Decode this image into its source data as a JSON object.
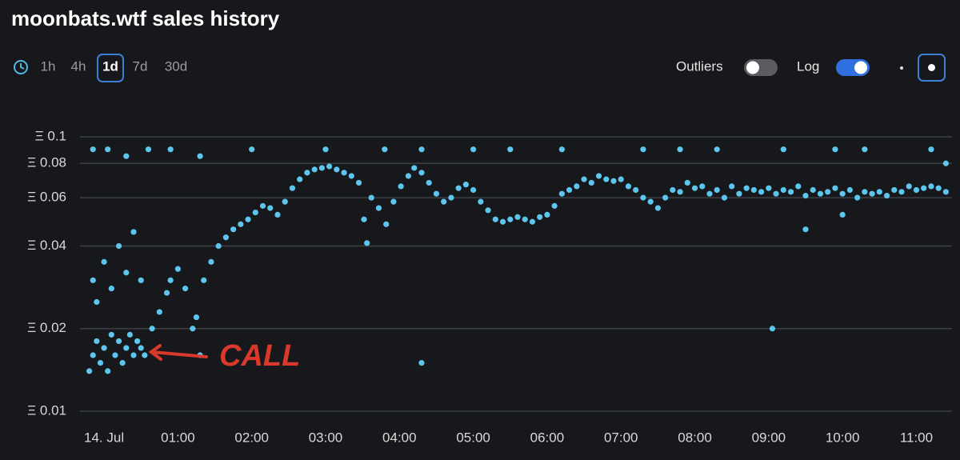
{
  "ui": {
    "title": "moonbats.wtf sales history",
    "ranges": [
      "1h",
      "4h",
      "1d",
      "7d",
      "30d"
    ],
    "selected_range": "1d",
    "outliers_label": "Outliers",
    "outliers_on": false,
    "log_label": "Log",
    "log_on": true
  },
  "chart_data": {
    "type": "scatter",
    "log_y": true,
    "grid": true,
    "color": "#5cc6ee",
    "annotation": "CALL",
    "annotation_color": "#d8392b",
    "xlim": [
      -0.25,
      11.45
    ],
    "ylim": [
      0.01,
      0.1
    ],
    "xticks": [
      {
        "value": 0,
        "label": "14. Jul"
      },
      {
        "value": 1,
        "label": "01:00"
      },
      {
        "value": 2,
        "label": "02:00"
      },
      {
        "value": 3,
        "label": "03:00"
      },
      {
        "value": 4,
        "label": "04:00"
      },
      {
        "value": 5,
        "label": "05:00"
      },
      {
        "value": 6,
        "label": "06:00"
      },
      {
        "value": 7,
        "label": "07:00"
      },
      {
        "value": 8,
        "label": "08:00"
      },
      {
        "value": 9,
        "label": "09:00"
      },
      {
        "value": 10,
        "label": "10:00"
      },
      {
        "value": 11,
        "label": "11:00"
      }
    ],
    "yticks": [
      {
        "value": 0.01,
        "label": "Ξ 0.01"
      },
      {
        "value": 0.02,
        "label": "Ξ 0.02"
      },
      {
        "value": 0.04,
        "label": "Ξ 0.04"
      },
      {
        "value": 0.06,
        "label": "Ξ 0.06"
      },
      {
        "value": 0.08,
        "label": "Ξ 0.08"
      },
      {
        "value": 0.1,
        "label": "Ξ 0.1"
      }
    ],
    "x": [
      -0.2,
      -0.15,
      -0.1,
      -0.05,
      0,
      0.05,
      0.1,
      0.15,
      0.2,
      0.25,
      0.3,
      0.35,
      0.4,
      0.45,
      0.5,
      0.55,
      -0.15,
      -0.1,
      0,
      0.1,
      0.2,
      0.3,
      0.4,
      0.5,
      -0.15,
      0.05,
      0.3,
      0.6,
      0.9,
      1.3,
      0.65,
      0.75,
      0.85,
      0.9,
      1.0,
      1.1,
      1.2,
      1.25,
      1.35,
      1.45,
      1.55,
      1.65,
      1.75,
      1.85,
      1.95,
      2.05,
      2.15,
      2.25,
      2.35,
      2.45,
      2.55,
      2.65,
      2.75,
      2.85,
      2.95,
      3.05,
      3.15,
      3.25,
      3.35,
      3.45,
      3.52,
      3.56,
      3.62,
      3.72,
      3.82,
      3.92,
      4.02,
      4.12,
      4.2,
      4.3,
      4.4,
      4.5,
      4.6,
      4.7,
      4.8,
      4.9,
      5.0,
      5.1,
      5.2,
      5.3,
      5.4,
      5.5,
      5.6,
      5.7,
      5.8,
      5.9,
      6.0,
      6.1,
      6.2,
      6.3,
      6.4,
      6.5,
      6.6,
      6.7,
      6.8,
      6.9,
      7.0,
      7.1,
      7.2,
      7.3,
      7.4,
      7.5,
      7.6,
      7.7,
      7.8,
      7.9,
      8.0,
      8.1,
      8.2,
      8.3,
      8.4,
      8.5,
      8.6,
      8.7,
      8.8,
      8.9,
      9.0,
      9.1,
      9.2,
      9.3,
      9.4,
      9.5,
      9.6,
      9.7,
      9.8,
      9.9,
      10.0,
      10.1,
      10.2,
      10.3,
      10.4,
      10.5,
      10.6,
      10.7,
      10.8,
      10.9,
      11.0,
      11.1,
      11.2,
      11.3,
      11.4,
      2.0,
      3.0,
      3.8,
      4.3,
      5.0,
      5.5,
      6.2,
      7.3,
      7.8,
      8.3,
      9.2,
      9.9,
      10.3,
      11.2,
      11.4,
      4.3,
      9.05,
      1.3,
      9.5,
      10.0
    ],
    "values": [
      0.014,
      0.016,
      0.018,
      0.015,
      0.017,
      0.014,
      0.019,
      0.016,
      0.018,
      0.015,
      0.017,
      0.019,
      0.016,
      0.018,
      0.017,
      0.016,
      0.03,
      0.025,
      0.035,
      0.028,
      0.04,
      0.032,
      0.045,
      0.03,
      0.09,
      0.09,
      0.085,
      0.09,
      0.09,
      0.085,
      0.02,
      0.023,
      0.027,
      0.03,
      0.033,
      0.028,
      0.02,
      0.022,
      0.03,
      0.035,
      0.04,
      0.043,
      0.046,
      0.048,
      0.05,
      0.053,
      0.056,
      0.055,
      0.052,
      0.058,
      0.065,
      0.07,
      0.074,
      0.076,
      0.077,
      0.078,
      0.076,
      0.074,
      0.072,
      0.068,
      0.05,
      0.041,
      0.06,
      0.055,
      0.048,
      0.058,
      0.066,
      0.072,
      0.077,
      0.074,
      0.068,
      0.062,
      0.058,
      0.06,
      0.065,
      0.067,
      0.064,
      0.058,
      0.054,
      0.05,
      0.049,
      0.05,
      0.051,
      0.05,
      0.049,
      0.051,
      0.052,
      0.056,
      0.062,
      0.064,
      0.066,
      0.07,
      0.068,
      0.072,
      0.07,
      0.069,
      0.07,
      0.066,
      0.064,
      0.06,
      0.058,
      0.055,
      0.06,
      0.064,
      0.063,
      0.068,
      0.065,
      0.066,
      0.062,
      0.064,
      0.06,
      0.066,
      0.062,
      0.065,
      0.064,
      0.063,
      0.065,
      0.062,
      0.064,
      0.063,
      0.066,
      0.061,
      0.064,
      0.062,
      0.063,
      0.065,
      0.062,
      0.064,
      0.06,
      0.063,
      0.062,
      0.063,
      0.061,
      0.064,
      0.063,
      0.066,
      0.064,
      0.065,
      0.066,
      0.065,
      0.063,
      0.09,
      0.09,
      0.09,
      0.09,
      0.09,
      0.09,
      0.09,
      0.09,
      0.09,
      0.09,
      0.09,
      0.09,
      0.09,
      0.09,
      0.08,
      0.015,
      0.02,
      0.016,
      0.046,
      0.052
    ]
  }
}
